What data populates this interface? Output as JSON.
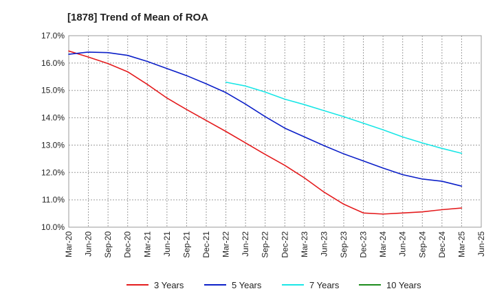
{
  "chart_data": {
    "type": "line",
    "title": "[1878]  Trend of Mean of ROA",
    "xlabel": "",
    "ylabel": "",
    "ylim": [
      10.0,
      17.0
    ],
    "yticks": [
      "10.0%",
      "11.0%",
      "12.0%",
      "13.0%",
      "14.0%",
      "15.0%",
      "16.0%",
      "17.0%"
    ],
    "ytick_values": [
      10,
      11,
      12,
      13,
      14,
      15,
      16,
      17
    ],
    "x_tick_labels": [
      "Mar-20",
      "Jun-20",
      "Sep-20",
      "Dec-20",
      "Mar-21",
      "Jun-21",
      "Sep-21",
      "Dec-21",
      "Mar-22",
      "Jun-22",
      "Sep-22",
      "Dec-22",
      "Mar-23",
      "Jun-23",
      "Sep-23",
      "Dec-23",
      "Mar-24",
      "Jun-24",
      "Sep-24",
      "Dec-24",
      "Mar-25",
      "Jun-25"
    ],
    "x_start_index": 0,
    "grid": true,
    "legend_position": "bottom",
    "series": [
      {
        "name": "3 Years",
        "color": "#e41a1c",
        "start_index": 0,
        "values": [
          16.44,
          16.22,
          15.98,
          15.68,
          15.22,
          14.72,
          14.3,
          13.9,
          13.5,
          13.08,
          12.66,
          12.26,
          11.8,
          11.28,
          10.84,
          10.52,
          10.48,
          10.52,
          10.56,
          10.64,
          10.7
        ]
      },
      {
        "name": "5 Years",
        "color": "#0a1ec8",
        "start_index": 0,
        "values": [
          16.32,
          16.4,
          16.38,
          16.28,
          16.06,
          15.8,
          15.54,
          15.24,
          14.92,
          14.5,
          14.04,
          13.62,
          13.3,
          12.98,
          12.68,
          12.42,
          12.16,
          11.92,
          11.76,
          11.68,
          11.5
        ]
      },
      {
        "name": "7 Years",
        "color": "#18e6e6",
        "start_index": 8,
        "values": [
          15.3,
          15.16,
          14.94,
          14.68,
          14.48,
          14.26,
          14.04,
          13.8,
          13.56,
          13.3,
          13.08,
          12.88,
          12.7
        ]
      },
      {
        "name": "10 Years",
        "color": "#1a8a1a",
        "start_index": 0,
        "values": []
      }
    ]
  }
}
